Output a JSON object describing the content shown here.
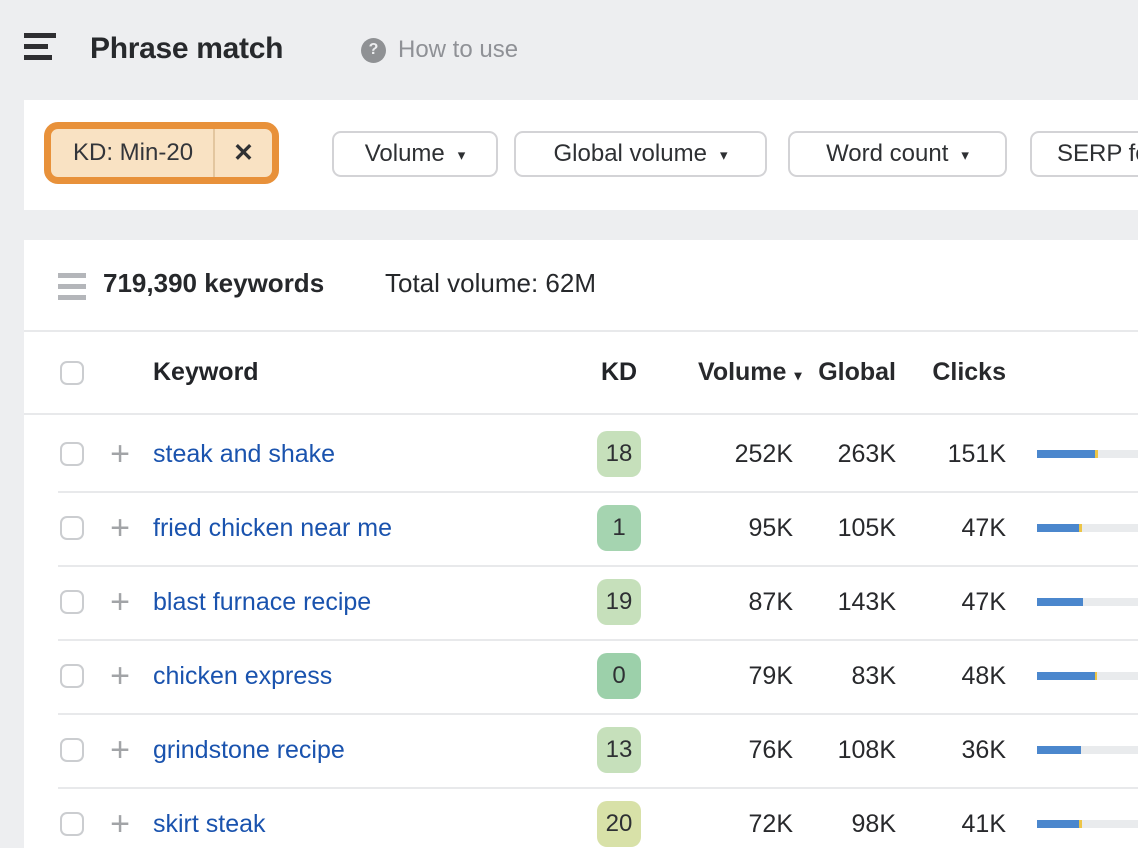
{
  "header": {
    "title": "Phrase match",
    "help_icon_glyph": "?",
    "help_label": "How to use"
  },
  "filters": {
    "active_chip": {
      "label": "KD: Min-20",
      "close_glyph": "✕",
      "highlight_color": "#e8913a",
      "chip_bg": "#f9e2c3"
    },
    "arrow_glyph": "▾",
    "buttons": [
      {
        "label": "Volume"
      },
      {
        "label": "Global volume"
      },
      {
        "label": "Word count"
      },
      {
        "label": "SERP fe"
      }
    ]
  },
  "results": {
    "count_label": "719,390 keywords",
    "total_volume_label": "Total volume: 62M"
  },
  "table": {
    "columns": {
      "keyword": "Keyword",
      "kd": "KD",
      "volume": "Volume",
      "global": "Global",
      "clicks": "Clicks"
    },
    "sort_arrow_glyph": "▾",
    "plus_glyph": "+",
    "rows": [
      {
        "keyword": "steak and shake",
        "kd": "18",
        "kd_color": "#c6e0bb",
        "volume": "252K",
        "global": "263K",
        "clicks": "151K",
        "bar": {
          "blue_pct": 57,
          "yellow_pct": 3
        }
      },
      {
        "keyword": "fried chicken near me",
        "kd": "1",
        "kd_color": "#a5d4b0",
        "volume": "95K",
        "global": "105K",
        "clicks": "47K",
        "bar": {
          "blue_pct": 42,
          "yellow_pct": 3
        }
      },
      {
        "keyword": "blast furnace recipe",
        "kd": "19",
        "kd_color": "#c6e0bb",
        "volume": "87K",
        "global": "143K",
        "clicks": "47K",
        "bar": {
          "blue_pct": 46,
          "yellow_pct": 0
        }
      },
      {
        "keyword": "chicken express",
        "kd": "0",
        "kd_color": "#9cd0aa",
        "volume": "79K",
        "global": "83K",
        "clicks": "48K",
        "bar": {
          "blue_pct": 57,
          "yellow_pct": 2
        }
      },
      {
        "keyword": "grindstone recipe",
        "kd": "13",
        "kd_color": "#c6e0bb",
        "volume": "76K",
        "global": "108K",
        "clicks": "36K",
        "bar": {
          "blue_pct": 44,
          "yellow_pct": 0
        }
      },
      {
        "keyword": "skirt steak",
        "kd": "20",
        "kd_color": "#d8e1a8",
        "volume": "72K",
        "global": "98K",
        "clicks": "41K",
        "bar": {
          "blue_pct": 42,
          "yellow_pct": 3
        }
      }
    ]
  },
  "colors": {
    "bar_blue": "#4b87cd",
    "bar_yellow": "#edc546",
    "bar_track": "#e9ebed",
    "link_blue": "#1a53ae",
    "page_bg": "#edeef0"
  }
}
